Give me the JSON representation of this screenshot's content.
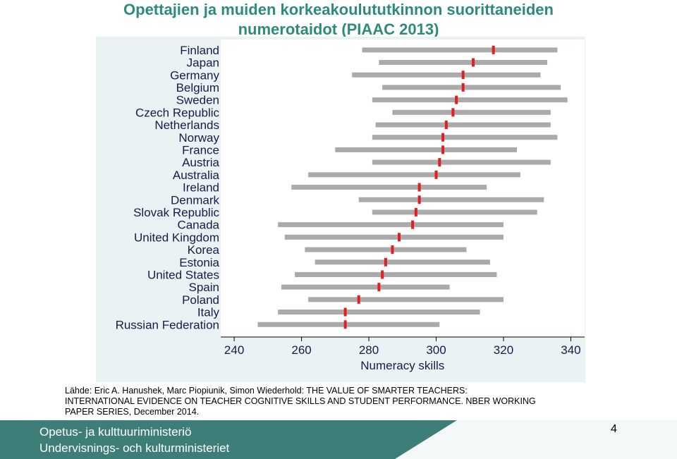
{
  "header": {
    "title_line1": "Opettajien ja muiden korkeakoulututkinnon suorittaneiden",
    "title_line2": "numerotaidot (PIAAC 2013)"
  },
  "colors": {
    "title": "#2e8b7a",
    "range_bar": "#aaaaaa",
    "marker": "#e02020",
    "chart_background": "#eaf2f3",
    "footer": "#3e7e79"
  },
  "chart_data": {
    "type": "bar",
    "orientation": "horizontal",
    "xlabel": "Numeracy skills",
    "xlim": [
      236,
      342
    ],
    "xticks": [
      240,
      260,
      280,
      300,
      320,
      340
    ],
    "grid": false,
    "categories": [
      "Finland",
      "Japan",
      "Germany",
      "Belgium",
      "Sweden",
      "Czech Republic",
      "Netherlands",
      "Norway",
      "France",
      "Austria",
      "Australia",
      "Ireland",
      "Denmark",
      "Slovak Republic",
      "Canada",
      "United Kingdom",
      "Korea",
      "Estonia",
      "United States",
      "Spain",
      "Poland",
      "Italy",
      "Russian Federation"
    ],
    "series": [
      {
        "values": [
          278,
          283,
          275,
          284,
          281,
          287,
          282,
          281,
          270,
          281,
          262,
          257,
          277,
          281,
          253,
          255,
          261,
          264,
          258,
          254,
          262,
          253,
          247
        ]
      },
      {
        "values": [
          336,
          333,
          331,
          337,
          339,
          334,
          334,
          336,
          324,
          334,
          325,
          315,
          332,
          330,
          320,
          320,
          309,
          316,
          318,
          304,
          320,
          313,
          301
        ]
      },
      {
        "values": [
          317,
          311,
          308,
          308,
          306,
          305,
          303,
          302,
          302,
          301,
          300,
          295,
          295,
          294,
          293,
          289,
          287,
          285,
          284,
          283,
          277,
          273,
          273
        ]
      }
    ]
  },
  "source": {
    "line1": "Lähde: Eric A. Hanushek, Marc Piopiunik, Simon Wiederhold: THE VALUE OF SMARTER TEACHERS:",
    "line2": "INTERNATIONAL EVIDENCE ON TEACHER COGNITIVE SKILLS AND STUDENT PERFORMANCE. NBER WORKING",
    "line3": "PAPER SERIES, December 2014."
  },
  "footer": {
    "ministry_fi": "Opetus- ja kulttuuriministeriö",
    "ministry_sv": "Undervisnings- och kulturministeriet",
    "page_number": "4"
  }
}
